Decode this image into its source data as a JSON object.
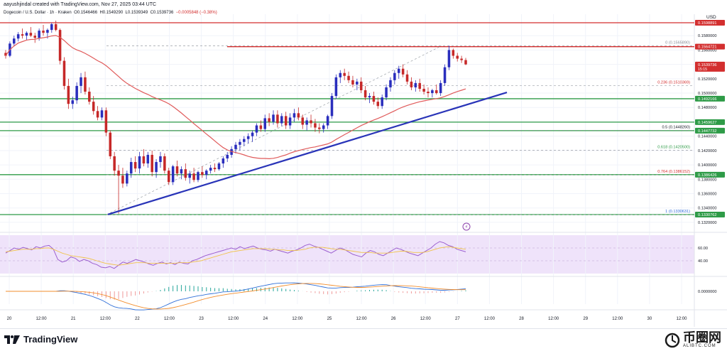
{
  "header": {
    "line1": "aayushjindal created with TradingView.com, Nov 27, 2025 03:44 UTC",
    "symbol": "Dogecoin / U.S. Dollar · 1h · Kraken",
    "o_label": "O",
    "o_val": "0.1546466",
    "h_label": "H",
    "h_val": "0.1549290",
    "l_label": "L",
    "l_val": "0.1539349",
    "c_label": "C",
    "c_val": "0.1539736",
    "chg": "−0.0005848 (−0.38%)"
  },
  "footer": {
    "brand": "TradingView",
    "watermark_cn": "币圈网",
    "watermark_sub": "ALIBTC.COM"
  },
  "colors": {
    "up": "#2a2ebd",
    "down": "#c62828",
    "hline_green": "#2e9b47",
    "hline_red": "#d32f2f",
    "ma": "#e05a5a",
    "trend": "#2934b8",
    "rsi": "#9c5fcf",
    "rsi_ma": "#f0c34a",
    "rsi_band": "#efe3fa",
    "macd": "#2f6fd8",
    "signal": "#f28d2c",
    "fib": "#9aa0a6",
    "fib_label_grey": "#8a8f98",
    "fib_label_red": "#d32f2f",
    "fib_label_green": "#2e9b47",
    "fib_label_blue": "#2e6bd8"
  },
  "chart_data": {
    "type": "candlestick",
    "currency_label": "USD",
    "price_axis_ticks": [
      "0.1580000",
      "0.1560000",
      "0.1540000",
      "0.1520000",
      "0.1500000",
      "0.1480000",
      "0.1460000",
      "0.1440000",
      "0.1420000",
      "0.1400000",
      "0.1380000",
      "0.1360000",
      "0.1340000",
      "0.1320000"
    ],
    "price_range": [
      0.1311,
      0.16
    ],
    "time_axis_labels": [
      "20",
      "12:00",
      "21",
      "12:00",
      "22",
      "12:00",
      "23",
      "12:00",
      "24",
      "12:00",
      "25",
      "12:00",
      "26",
      "12:00",
      "27",
      "12:00",
      "28",
      "12:00",
      "29",
      "12:00",
      "30",
      "12:00"
    ],
    "price_tags": [
      {
        "price": 0.1598,
        "text": "0.1598891",
        "color": "#d32f2f"
      },
      {
        "price": 0.15647,
        "text": "0.1564721",
        "color": "#d32f2f"
      },
      {
        "price": 0.15397,
        "text": "0.1539736",
        "color": "#d32f2f",
        "sub": "15:15"
      },
      {
        "price": 0.14922,
        "text": "0.1492166",
        "color": "#2e9b47"
      },
      {
        "price": 0.14596,
        "text": "0.1459627",
        "color": "#2e9b47"
      },
      {
        "price": 0.14477,
        "text": "0.1447732",
        "color": "#2e9b47"
      },
      {
        "price": 0.13864,
        "text": "0.1386426",
        "color": "#2e9b47"
      },
      {
        "price": 0.13308,
        "text": "0.1330762",
        "color": "#2e9b47"
      }
    ],
    "horizontal_lines": [
      {
        "price": 0.1598,
        "color": "#d32f2f",
        "from": 0
      },
      {
        "price": 0.15647,
        "color": "#d32f2f",
        "from": 320
      },
      {
        "price": 0.14922,
        "color": "#2e9b47",
        "from": 0
      },
      {
        "price": 0.14596,
        "color": "#2e9b47",
        "from": 0
      },
      {
        "price": 0.14477,
        "color": "#2e9b47",
        "from": 0
      },
      {
        "price": 0.13864,
        "color": "#2e9b47",
        "from": 0
      },
      {
        "price": 0.13308,
        "color": "#2e9b47",
        "from": 0
      }
    ],
    "fibonacci": [
      {
        "ratio": "0",
        "price": 0.156589,
        "label": "0 (0.1565890)",
        "color": "#8a8f98"
      },
      {
        "ratio": "0.236",
        "price": 0.1510369,
        "label": "0.236 (0.1510369)",
        "color": "#d32f2f"
      },
      {
        "ratio": "0.5",
        "price": 0.144826,
        "label": "0.5 (0.1448260)",
        "color": "#131722"
      },
      {
        "ratio": "0.618",
        "price": 0.14205,
        "label": "0.618 (0.1420500)",
        "color": "#2e9b47"
      },
      {
        "ratio": "0.764",
        "price": 0.1386152,
        "label": "0.764 (0.1386152)",
        "color": "#d32f2f"
      },
      {
        "ratio": "1",
        "price": 0.1330631,
        "label": "1 (0.1330631)",
        "color": "#2e6bd8"
      }
    ],
    "trendline": {
      "start": [
        {
          "day": "21",
          "time": "13:00"
        },
        0.1331
      ],
      "end": [
        {
          "day": "27",
          "time": "17:00"
        },
        0.1501
      ]
    },
    "candles_hint": "Hourly OHLC, Nov 20 00:00 – Nov 27 03:00 (approx)",
    "ohlc": [
      [
        0.1556,
        0.156,
        0.1548,
        0.1552
      ],
      [
        0.1552,
        0.1572,
        0.155,
        0.1569
      ],
      [
        0.1569,
        0.158,
        0.1565,
        0.1576
      ],
      [
        0.1576,
        0.1585,
        0.1572,
        0.1582
      ],
      [
        0.1582,
        0.159,
        0.1576,
        0.158
      ],
      [
        0.158,
        0.1586,
        0.1574,
        0.1584
      ],
      [
        0.1584,
        0.1592,
        0.1578,
        0.158
      ],
      [
        0.158,
        0.1584,
        0.157,
        0.1577
      ],
      [
        0.1577,
        0.159,
        0.1573,
        0.1587
      ],
      [
        0.1587,
        0.1595,
        0.158,
        0.1584
      ],
      [
        0.1584,
        0.159,
        0.1576,
        0.1588
      ],
      [
        0.1588,
        0.1598,
        0.1584,
        0.1596
      ],
      [
        0.1596,
        0.1601,
        0.1586,
        0.1588
      ],
      [
        0.1588,
        0.159,
        0.154,
        0.1545
      ],
      [
        0.1545,
        0.155,
        0.1505,
        0.151
      ],
      [
        0.151,
        0.152,
        0.1478,
        0.1485
      ],
      [
        0.1485,
        0.1495,
        0.1478,
        0.149
      ],
      [
        0.149,
        0.1515,
        0.1485,
        0.151
      ],
      [
        0.151,
        0.1528,
        0.15,
        0.1522
      ],
      [
        0.1522,
        0.153,
        0.1498,
        0.1502
      ],
      [
        0.1502,
        0.1508,
        0.1484,
        0.1488
      ],
      [
        0.1488,
        0.1496,
        0.147,
        0.1475
      ],
      [
        0.1475,
        0.1482,
        0.1462,
        0.1466
      ],
      [
        0.1466,
        0.148,
        0.1462,
        0.1476
      ],
      [
        0.1476,
        0.148,
        0.144,
        0.1445
      ],
      [
        0.1445,
        0.1448,
        0.1408,
        0.1412
      ],
      [
        0.1412,
        0.1418,
        0.1385,
        0.1392
      ],
      [
        0.1392,
        0.14,
        0.1332,
        0.1385
      ],
      [
        0.1385,
        0.1396,
        0.1368,
        0.1374
      ],
      [
        0.1374,
        0.1392,
        0.137,
        0.1388
      ],
      [
        0.1388,
        0.141,
        0.1382,
        0.1404
      ],
      [
        0.1404,
        0.1412,
        0.139,
        0.1395
      ],
      [
        0.1395,
        0.1418,
        0.1388,
        0.1412
      ],
      [
        0.1412,
        0.1422,
        0.1398,
        0.1402
      ],
      [
        0.1402,
        0.1418,
        0.1396,
        0.1414
      ],
      [
        0.1414,
        0.142,
        0.1384,
        0.139
      ],
      [
        0.139,
        0.1408,
        0.1382,
        0.1404
      ],
      [
        0.1404,
        0.1418,
        0.1396,
        0.1412
      ],
      [
        0.1412,
        0.1416,
        0.1388,
        0.1392
      ],
      [
        0.1392,
        0.1396,
        0.1372,
        0.1376
      ],
      [
        0.1376,
        0.14,
        0.1372,
        0.1398
      ],
      [
        0.1398,
        0.1406,
        0.1384,
        0.1388
      ],
      [
        0.1388,
        0.1398,
        0.138,
        0.1394
      ],
      [
        0.1394,
        0.1402,
        0.1378,
        0.1382
      ],
      [
        0.1382,
        0.1392,
        0.1374,
        0.1388
      ],
      [
        0.1388,
        0.1396,
        0.1376,
        0.1379
      ],
      [
        0.1379,
        0.1392,
        0.1376,
        0.139
      ],
      [
        0.139,
        0.1398,
        0.1382,
        0.1386
      ],
      [
        0.1386,
        0.1394,
        0.138,
        0.1392
      ],
      [
        0.1392,
        0.14,
        0.1388,
        0.1396
      ],
      [
        0.1396,
        0.1402,
        0.139,
        0.1394
      ],
      [
        0.1394,
        0.1404,
        0.1392,
        0.1402
      ],
      [
        0.1402,
        0.1412,
        0.1396,
        0.1409
      ],
      [
        0.1409,
        0.1418,
        0.1404,
        0.1414
      ],
      [
        0.1414,
        0.1426,
        0.141,
        0.1422
      ],
      [
        0.1422,
        0.1432,
        0.1416,
        0.1428
      ],
      [
        0.1428,
        0.1436,
        0.142,
        0.1432
      ],
      [
        0.1432,
        0.144,
        0.1426,
        0.1436
      ],
      [
        0.1436,
        0.1444,
        0.143,
        0.144
      ],
      [
        0.144,
        0.1448,
        0.1432,
        0.1445
      ],
      [
        0.1445,
        0.1458,
        0.144,
        0.1455
      ],
      [
        0.1455,
        0.1462,
        0.1446,
        0.145
      ],
      [
        0.145,
        0.147,
        0.1446,
        0.1465
      ],
      [
        0.1465,
        0.1472,
        0.1454,
        0.146
      ],
      [
        0.146,
        0.1476,
        0.1456,
        0.147
      ],
      [
        0.147,
        0.1476,
        0.1452,
        0.1458
      ],
      [
        0.1458,
        0.1472,
        0.1454,
        0.1468
      ],
      [
        0.1468,
        0.1474,
        0.145,
        0.1455
      ],
      [
        0.1455,
        0.1472,
        0.145,
        0.1466
      ],
      [
        0.1466,
        0.1478,
        0.146,
        0.1472
      ],
      [
        0.1472,
        0.148,
        0.1462,
        0.1466
      ],
      [
        0.1466,
        0.147,
        0.145,
        0.1456
      ],
      [
        0.1456,
        0.1466,
        0.1448,
        0.1462
      ],
      [
        0.1462,
        0.147,
        0.1452,
        0.1458
      ],
      [
        0.1458,
        0.1464,
        0.1446,
        0.1452
      ],
      [
        0.1452,
        0.1458,
        0.1444,
        0.145
      ],
      [
        0.145,
        0.1458,
        0.1445,
        0.1455
      ],
      [
        0.1455,
        0.147,
        0.145,
        0.1468
      ],
      [
        0.1468,
        0.15,
        0.1464,
        0.1496
      ],
      [
        0.1496,
        0.1526,
        0.1492,
        0.1522
      ],
      [
        0.1522,
        0.1532,
        0.1514,
        0.1528
      ],
      [
        0.1528,
        0.1534,
        0.1518,
        0.1524
      ],
      [
        0.1524,
        0.153,
        0.1514,
        0.1518
      ],
      [
        0.1518,
        0.1524,
        0.1508,
        0.1512
      ],
      [
        0.1512,
        0.152,
        0.1504,
        0.1516
      ],
      [
        0.1516,
        0.1522,
        0.15,
        0.1504
      ],
      [
        0.1504,
        0.151,
        0.149,
        0.1494
      ],
      [
        0.1494,
        0.15,
        0.1486,
        0.1496
      ],
      [
        0.1496,
        0.1502,
        0.1484,
        0.1488
      ],
      [
        0.1488,
        0.1494,
        0.1478,
        0.1482
      ],
      [
        0.1482,
        0.1498,
        0.1478,
        0.1494
      ],
      [
        0.1494,
        0.1512,
        0.149,
        0.1508
      ],
      [
        0.1508,
        0.1522,
        0.1502,
        0.1518
      ],
      [
        0.1518,
        0.1532,
        0.1512,
        0.1528
      ],
      [
        0.1528,
        0.1538,
        0.152,
        0.1534
      ],
      [
        0.1534,
        0.154,
        0.1522,
        0.1526
      ],
      [
        0.1526,
        0.1532,
        0.1512,
        0.1516
      ],
      [
        0.1516,
        0.1522,
        0.1504,
        0.1508
      ],
      [
        0.1508,
        0.1518,
        0.1502,
        0.1514
      ],
      [
        0.1514,
        0.152,
        0.1502,
        0.1506
      ],
      [
        0.1506,
        0.1512,
        0.1498,
        0.1502
      ],
      [
        0.1502,
        0.1508,
        0.1494,
        0.15
      ],
      [
        0.15,
        0.1506,
        0.1494,
        0.1504
      ],
      [
        0.1504,
        0.1512,
        0.1498,
        0.15
      ],
      [
        0.15,
        0.1518,
        0.1496,
        0.1514
      ],
      [
        0.1514,
        0.154,
        0.151,
        0.1536
      ],
      [
        0.1536,
        0.1566,
        0.1532,
        0.156
      ],
      [
        0.156,
        0.1562,
        0.1548,
        0.1552
      ],
      [
        0.1552,
        0.1556,
        0.1544,
        0.1548
      ],
      [
        0.1548,
        0.1552,
        0.1542,
        0.1546
      ],
      [
        0.1546,
        0.1549,
        0.1539,
        0.154
      ]
    ],
    "ma_period_hint": "SMA",
    "rsi": {
      "levels": [
        "60.00",
        "40.00"
      ],
      "values": [
        52,
        56,
        60,
        58,
        61,
        59,
        57,
        62,
        60,
        63,
        64,
        58,
        42,
        38,
        40,
        46,
        44,
        39,
        42,
        40,
        36,
        34,
        30,
        29,
        31,
        28,
        33,
        38,
        36,
        39,
        42,
        40,
        38,
        35,
        33,
        36,
        38,
        35,
        37,
        34,
        38,
        36,
        35,
        40,
        42,
        45,
        48,
        50,
        52,
        54,
        56,
        58,
        60,
        58,
        62,
        59,
        61,
        63,
        60,
        58,
        57,
        55,
        58,
        56,
        54,
        52,
        55,
        57,
        60,
        64,
        66,
        63,
        61,
        58,
        55,
        52,
        56,
        60,
        58,
        54,
        50,
        48,
        46,
        52,
        56,
        54,
        50,
        48,
        52,
        56,
        60,
        58,
        55,
        52,
        50,
        48,
        52,
        56,
        60,
        66,
        70,
        68,
        64,
        62,
        58,
        56,
        54
      ],
      "ma_values": [
        54,
        55,
        56,
        57,
        58,
        58,
        58,
        59,
        59,
        60,
        60,
        58,
        55,
        52,
        50,
        48,
        47,
        46,
        45,
        44,
        42,
        40,
        38,
        36,
        35,
        34,
        33,
        34,
        35,
        36,
        37,
        37,
        37,
        36,
        36,
        36,
        36,
        36,
        36,
        36,
        37,
        37,
        37,
        38,
        39,
        40,
        42,
        44,
        46,
        48,
        50,
        52,
        54,
        55,
        56,
        57,
        58,
        59,
        59,
        59,
        59,
        58,
        58,
        57,
        57,
        56,
        56,
        56,
        57,
        58,
        60,
        61,
        61,
        61,
        60,
        59,
        58,
        58,
        57,
        56,
        55,
        54,
        53,
        53,
        53,
        52,
        52,
        52,
        52,
        53,
        54,
        55,
        55,
        54,
        53,
        53,
        53,
        54,
        56,
        58,
        60,
        61,
        62,
        61,
        60,
        59,
        58
      ]
    },
    "macd": {
      "zero_label": "0.0000000",
      "hist_hint": "histogram around zero; MACD and signal lines"
    }
  }
}
